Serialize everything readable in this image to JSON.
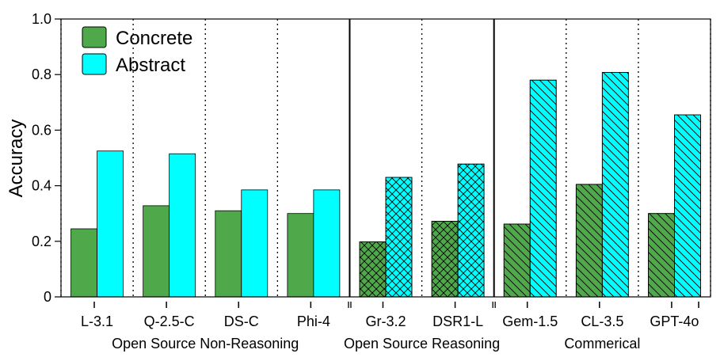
{
  "chart_data": {
    "type": "bar",
    "title": "",
    "xlabel": "",
    "ylabel": "Accuracy",
    "ylim": [
      0,
      1.0
    ],
    "yticks": [
      "0",
      "0.2",
      "0.4",
      "0.6",
      "0.8",
      "1.0"
    ],
    "categories": [
      "L-3.1",
      "Q-2.5-C",
      "DS-C",
      "Phi-4",
      "Gr-3.2",
      "DSR1-L",
      "Gem-1.5",
      "CL-3.5",
      "GPT-4o"
    ],
    "series": [
      {
        "name": "Concrete",
        "color": "#4fa84a",
        "values": [
          0.245,
          0.328,
          0.31,
          0.3,
          0.198,
          0.272,
          0.262,
          0.405,
          0.3
        ]
      },
      {
        "name": "Abstract",
        "color": "#00ffff",
        "values": [
          0.525,
          0.515,
          0.385,
          0.385,
          0.43,
          0.478,
          0.78,
          0.808,
          0.655
        ]
      }
    ],
    "groups": [
      {
        "label": "Open Source Non-Reasoning",
        "pattern": "none",
        "categories": [
          "L-3.1",
          "Q-2.5-C",
          "DS-C",
          "Phi-4"
        ]
      },
      {
        "label": "Open Source Reasoning",
        "pattern": "crosshatch",
        "categories": [
          "Gr-3.2",
          "DSR1-L"
        ]
      },
      {
        "label": "Commerical",
        "pattern": "diagonal",
        "categories": [
          "Gem-1.5",
          "CL-3.5",
          "GPT-4o"
        ]
      }
    ],
    "legend": {
      "position": "top-left",
      "entries": [
        "Concrete",
        "Abstract"
      ]
    }
  }
}
